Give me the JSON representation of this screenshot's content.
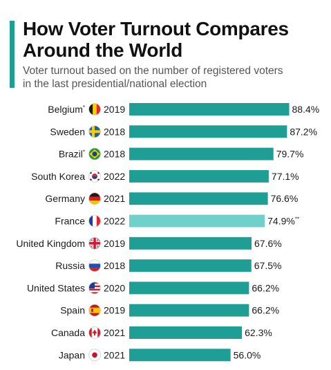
{
  "header": {
    "title_line1": "How Voter Turnout Compares",
    "title_line2": "Around the World",
    "subtitle_line1": "Voter turnout based on the number of registered voters",
    "subtitle_line2": "in the last presidential/national election",
    "accent_color": "#1f9e95"
  },
  "chart_data": {
    "type": "bar",
    "orientation": "horizontal",
    "unit": "%",
    "xlim": [
      0,
      100
    ],
    "grid": false,
    "bar_color": "#1f9e95",
    "highlight_color": "#6fd1c9",
    "categories": [
      "Belgium",
      "Sweden",
      "Brazil",
      "South Korea",
      "Germany",
      "France",
      "United Kingdom",
      "Russia",
      "United States",
      "Spain",
      "Canada",
      "Japan"
    ],
    "years": [
      "2019",
      "2018",
      "2018",
      "2022",
      "2021",
      "2022",
      "2019",
      "2018",
      "2020",
      "2019",
      "2021",
      "2021"
    ],
    "values": [
      88.4,
      87.2,
      79.7,
      77.1,
      76.6,
      74.9,
      67.6,
      67.5,
      66.2,
      66.2,
      62.3,
      56.0
    ],
    "value_labels": [
      "88.4%",
      "87.2%",
      "79.7%",
      "77.1%",
      "76.6%",
      "74.9%",
      "67.6%",
      "67.5%",
      "66.2%",
      "66.2%",
      "62.3%",
      "56.0%"
    ],
    "name_marks": [
      "*",
      "",
      "*",
      "",
      "",
      "",
      "",
      "",
      "",
      "",
      "",
      ""
    ],
    "value_marks": [
      "",
      "",
      "",
      "",
      "",
      "**",
      "",
      "",
      "",
      "",
      "",
      ""
    ],
    "highlighted": [
      false,
      false,
      false,
      false,
      false,
      true,
      false,
      false,
      false,
      false,
      false,
      false
    ],
    "flags": [
      "belgium-flag-icon",
      "sweden-flag-icon",
      "brazil-flag-icon",
      "south-korea-flag-icon",
      "germany-flag-icon",
      "france-flag-icon",
      "united-kingdom-flag-icon",
      "russia-flag-icon",
      "united-states-flag-icon",
      "spain-flag-icon",
      "canada-flag-icon",
      "japan-flag-icon"
    ]
  }
}
